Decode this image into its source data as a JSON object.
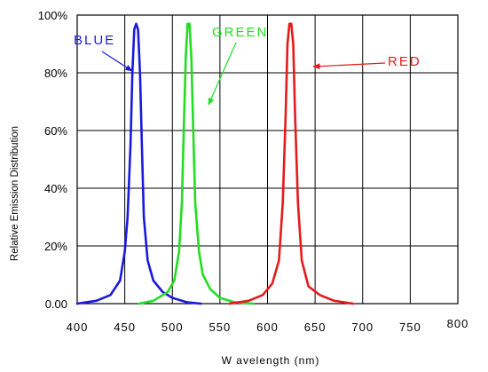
{
  "chart_data": {
    "type": "line",
    "xlabel": "W avelength (nm)",
    "ylabel": "Relative Emission Distribution",
    "xlim": [
      400,
      800
    ],
    "ylim": [
      0,
      100
    ],
    "x_ticks": [
      "400",
      "450",
      "500",
      "550",
      "600",
      "650",
      "700",
      "750",
      "800"
    ],
    "y_ticks": [
      "0.00",
      "20%",
      "40%",
      "60%",
      "80%",
      "100%"
    ],
    "grid": true,
    "series": [
      {
        "name": "BLUE",
        "color": "#1a1adc",
        "points": [
          [
            400,
            0
          ],
          [
            420,
            1
          ],
          [
            435,
            3
          ],
          [
            445,
            8
          ],
          [
            450,
            18
          ],
          [
            453,
            30
          ],
          [
            456,
            55
          ],
          [
            458,
            80
          ],
          [
            460,
            95
          ],
          [
            462,
            97
          ],
          [
            464,
            95
          ],
          [
            466,
            80
          ],
          [
            468,
            55
          ],
          [
            470,
            30
          ],
          [
            474,
            15
          ],
          [
            480,
            8
          ],
          [
            490,
            4
          ],
          [
            500,
            2
          ],
          [
            515,
            0.5
          ],
          [
            530,
            0
          ]
        ]
      },
      {
        "name": "GREEN",
        "color": "#22dd22",
        "points": [
          [
            465,
            0
          ],
          [
            480,
            1
          ],
          [
            495,
            4
          ],
          [
            502,
            8
          ],
          [
            507,
            18
          ],
          [
            510,
            35
          ],
          [
            512,
            60
          ],
          [
            514,
            85
          ],
          [
            516,
            97
          ],
          [
            518,
            97
          ],
          [
            520,
            85
          ],
          [
            522,
            60
          ],
          [
            524,
            35
          ],
          [
            528,
            18
          ],
          [
            532,
            10
          ],
          [
            540,
            5
          ],
          [
            550,
            2
          ],
          [
            565,
            0.5
          ],
          [
            585,
            0
          ]
        ]
      },
      {
        "name": "RED",
        "color": "#e51a1a",
        "points": [
          [
            560,
            0
          ],
          [
            580,
            1
          ],
          [
            595,
            3
          ],
          [
            605,
            7
          ],
          [
            612,
            15
          ],
          [
            616,
            35
          ],
          [
            619,
            65
          ],
          [
            621,
            90
          ],
          [
            623,
            97
          ],
          [
            625,
            97
          ],
          [
            627,
            90
          ],
          [
            629,
            65
          ],
          [
            632,
            35
          ],
          [
            636,
            15
          ],
          [
            643,
            6
          ],
          [
            655,
            3
          ],
          [
            670,
            1
          ],
          [
            690,
            0
          ]
        ]
      }
    ]
  }
}
